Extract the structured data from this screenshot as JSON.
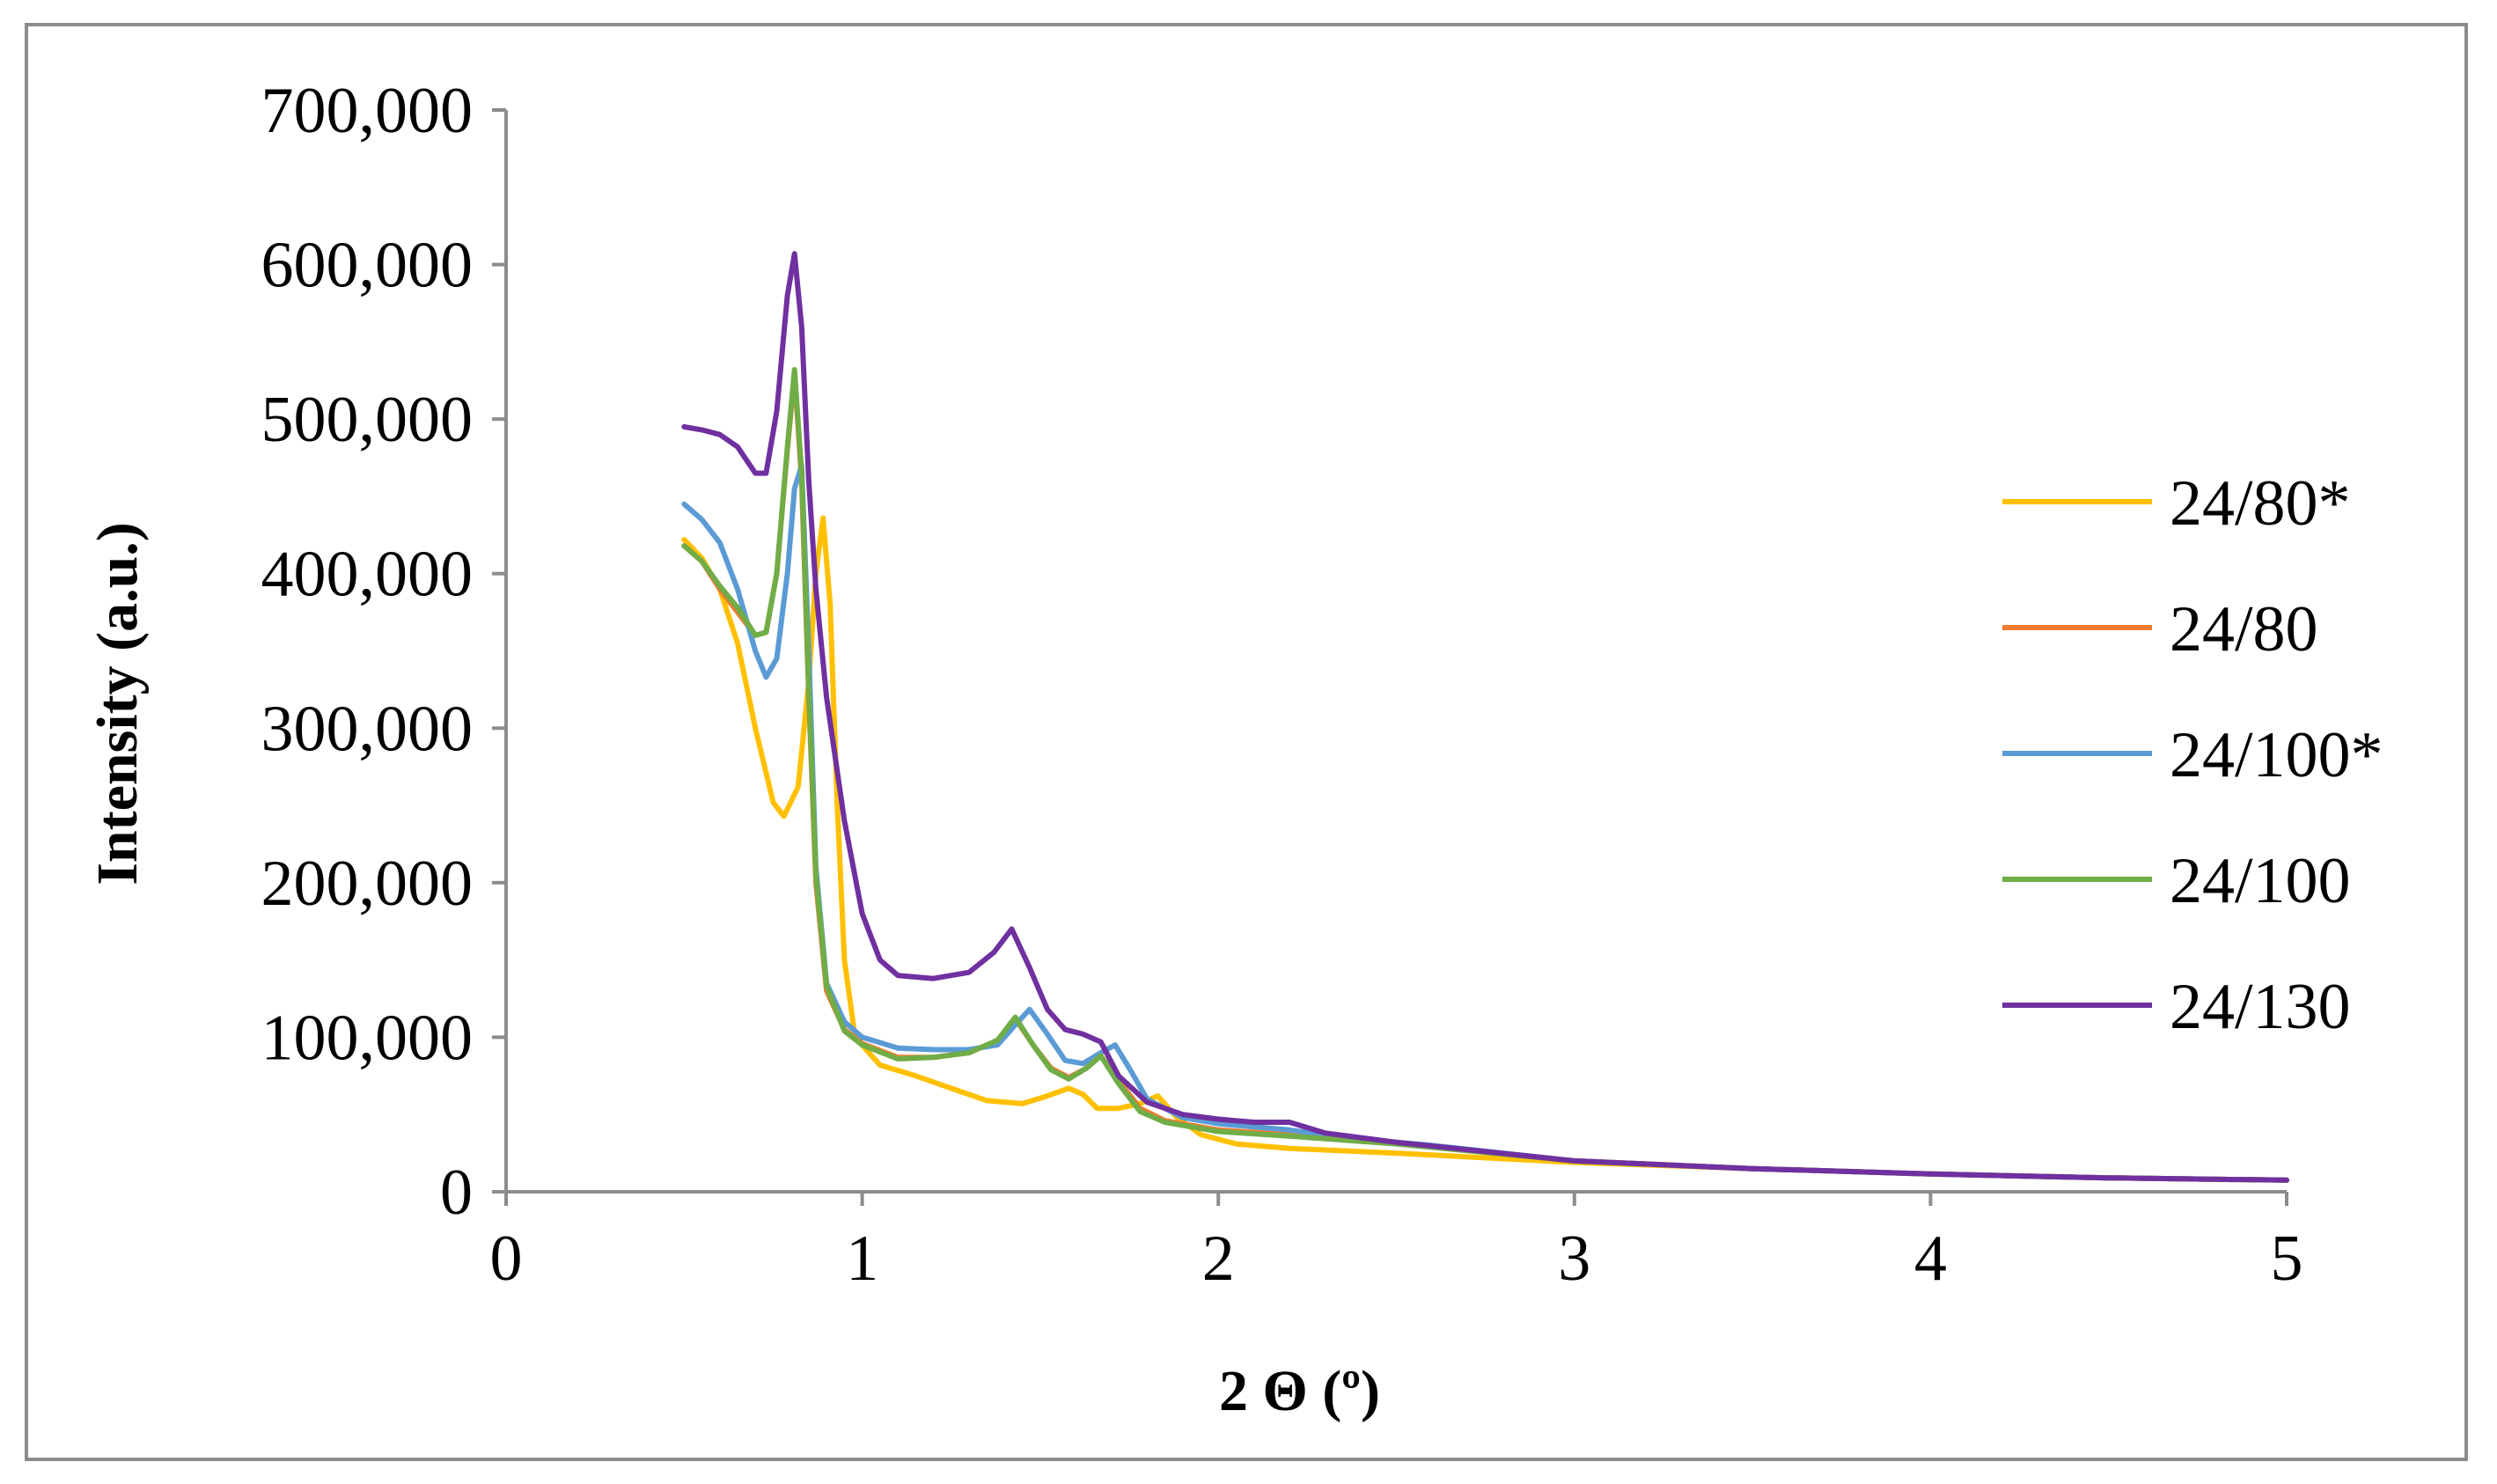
{
  "chart_data": {
    "type": "line",
    "xlabel": "2 Θ (º)",
    "ylabel": "Intensity (a.u.)",
    "xlim": [
      0,
      5
    ],
    "ylim": [
      0,
      700000
    ],
    "x_ticks": [
      "0",
      "1",
      "2",
      "3",
      "4",
      "5"
    ],
    "y_ticks": [
      "0",
      "100,000",
      "200,000",
      "300,000",
      "400,000",
      "500,000",
      "600,000",
      "700,000"
    ],
    "grid": false,
    "legend_position": "right",
    "series": [
      {
        "name": "24/80*",
        "color": "#FFC000",
        "points": [
          [
            0.5,
            422000
          ],
          [
            0.55,
            410000
          ],
          [
            0.6,
            390000
          ],
          [
            0.65,
            355000
          ],
          [
            0.7,
            300000
          ],
          [
            0.75,
            252000
          ],
          [
            0.78,
            243000
          ],
          [
            0.82,
            262000
          ],
          [
            0.85,
            330000
          ],
          [
            0.87,
            400000
          ],
          [
            0.89,
            436000
          ],
          [
            0.91,
            380000
          ],
          [
            0.93,
            250000
          ],
          [
            0.95,
            150000
          ],
          [
            0.98,
            100000
          ],
          [
            1.05,
            82000
          ],
          [
            1.15,
            75000
          ],
          [
            1.25,
            67000
          ],
          [
            1.35,
            59000
          ],
          [
            1.45,
            57000
          ],
          [
            1.52,
            62000
          ],
          [
            1.58,
            67000
          ],
          [
            1.62,
            63000
          ],
          [
            1.66,
            54000
          ],
          [
            1.72,
            54000
          ],
          [
            1.78,
            57000
          ],
          [
            1.83,
            62000
          ],
          [
            1.88,
            49000
          ],
          [
            1.95,
            37000
          ],
          [
            2.05,
            31000
          ],
          [
            2.2,
            28000
          ],
          [
            2.5,
            25000
          ],
          [
            3.0,
            19000
          ],
          [
            3.5,
            15000
          ],
          [
            4.0,
            11500
          ],
          [
            4.5,
            9000
          ],
          [
            5.0,
            7500
          ]
        ]
      },
      {
        "name": "24/80",
        "color": "#ED7D31",
        "points": [
          [
            0.5,
            418000
          ],
          [
            0.55,
            408000
          ],
          [
            0.6,
            390000
          ],
          [
            0.65,
            375000
          ],
          [
            0.7,
            360000
          ],
          [
            0.73,
            362000
          ],
          [
            0.76,
            400000
          ],
          [
            0.79,
            480000
          ],
          [
            0.81,
            530000
          ],
          [
            0.83,
            460000
          ],
          [
            0.85,
            320000
          ],
          [
            0.87,
            200000
          ],
          [
            0.9,
            130000
          ],
          [
            0.95,
            105000
          ],
          [
            1.0,
            96000
          ],
          [
            1.1,
            87000
          ],
          [
            1.2,
            87000
          ],
          [
            1.3,
            90000
          ],
          [
            1.38,
            98000
          ],
          [
            1.43,
            112000
          ],
          [
            1.48,
            95000
          ],
          [
            1.53,
            80000
          ],
          [
            1.58,
            74000
          ],
          [
            1.63,
            80000
          ],
          [
            1.67,
            88000
          ],
          [
            1.72,
            72000
          ],
          [
            1.78,
            54000
          ],
          [
            1.85,
            46000
          ],
          [
            2.0,
            40000
          ],
          [
            2.2,
            37000
          ],
          [
            2.5,
            32000
          ],
          [
            3.0,
            20000
          ],
          [
            3.5,
            15000
          ],
          [
            4.0,
            11500
          ],
          [
            4.5,
            9000
          ],
          [
            5.0,
            7500
          ]
        ]
      },
      {
        "name": "24/100*",
        "color": "#5B9BD5",
        "points": [
          [
            0.5,
            445000
          ],
          [
            0.55,
            435000
          ],
          [
            0.6,
            420000
          ],
          [
            0.65,
            390000
          ],
          [
            0.7,
            350000
          ],
          [
            0.73,
            333000
          ],
          [
            0.76,
            345000
          ],
          [
            0.79,
            400000
          ],
          [
            0.81,
            455000
          ],
          [
            0.83,
            470000
          ],
          [
            0.85,
            350000
          ],
          [
            0.87,
            210000
          ],
          [
            0.9,
            135000
          ],
          [
            0.95,
            110000
          ],
          [
            1.0,
            100000
          ],
          [
            1.1,
            93000
          ],
          [
            1.2,
            92000
          ],
          [
            1.3,
            92000
          ],
          [
            1.38,
            95000
          ],
          [
            1.43,
            108000
          ],
          [
            1.47,
            118000
          ],
          [
            1.52,
            102000
          ],
          [
            1.57,
            85000
          ],
          [
            1.62,
            83000
          ],
          [
            1.67,
            90000
          ],
          [
            1.71,
            95000
          ],
          [
            1.75,
            80000
          ],
          [
            1.8,
            60000
          ],
          [
            1.9,
            48000
          ],
          [
            2.0,
            44000
          ],
          [
            2.2,
            40000
          ],
          [
            2.4,
            34000
          ],
          [
            2.6,
            30000
          ],
          [
            3.0,
            20000
          ],
          [
            3.5,
            15000
          ],
          [
            4.0,
            11500
          ],
          [
            4.5,
            9000
          ],
          [
            5.0,
            7500
          ]
        ]
      },
      {
        "name": "24/100",
        "color": "#70AD47",
        "points": [
          [
            0.5,
            418000
          ],
          [
            0.55,
            408000
          ],
          [
            0.6,
            392000
          ],
          [
            0.65,
            378000
          ],
          [
            0.7,
            360000
          ],
          [
            0.73,
            362000
          ],
          [
            0.76,
            400000
          ],
          [
            0.79,
            482000
          ],
          [
            0.81,
            532000
          ],
          [
            0.83,
            465000
          ],
          [
            0.85,
            325000
          ],
          [
            0.87,
            205000
          ],
          [
            0.9,
            133000
          ],
          [
            0.95,
            104000
          ],
          [
            1.0,
            95000
          ],
          [
            1.1,
            86000
          ],
          [
            1.2,
            87000
          ],
          [
            1.3,
            90000
          ],
          [
            1.38,
            98000
          ],
          [
            1.43,
            113000
          ],
          [
            1.48,
            95000
          ],
          [
            1.53,
            79000
          ],
          [
            1.58,
            73000
          ],
          [
            1.63,
            80000
          ],
          [
            1.67,
            88000
          ],
          [
            1.72,
            70000
          ],
          [
            1.78,
            52000
          ],
          [
            1.85,
            45000
          ],
          [
            2.0,
            39000
          ],
          [
            2.2,
            36000
          ],
          [
            2.5,
            31000
          ],
          [
            3.0,
            20000
          ],
          [
            3.5,
            15000
          ],
          [
            4.0,
            11500
          ],
          [
            4.5,
            9000
          ],
          [
            5.0,
            7500
          ]
        ]
      },
      {
        "name": "24/130",
        "color": "#7030A0",
        "points": [
          [
            0.5,
            495000
          ],
          [
            0.55,
            493000
          ],
          [
            0.6,
            490000
          ],
          [
            0.65,
            482000
          ],
          [
            0.7,
            465000
          ],
          [
            0.73,
            465000
          ],
          [
            0.76,
            505000
          ],
          [
            0.79,
            580000
          ],
          [
            0.81,
            607000
          ],
          [
            0.83,
            560000
          ],
          [
            0.85,
            460000
          ],
          [
            0.87,
            390000
          ],
          [
            0.9,
            320000
          ],
          [
            0.95,
            240000
          ],
          [
            1.0,
            180000
          ],
          [
            1.05,
            150000
          ],
          [
            1.1,
            140000
          ],
          [
            1.2,
            138000
          ],
          [
            1.3,
            142000
          ],
          [
            1.37,
            155000
          ],
          [
            1.42,
            170000
          ],
          [
            1.47,
            145000
          ],
          [
            1.52,
            118000
          ],
          [
            1.57,
            105000
          ],
          [
            1.62,
            102000
          ],
          [
            1.67,
            97000
          ],
          [
            1.72,
            75000
          ],
          [
            1.8,
            58000
          ],
          [
            1.9,
            50000
          ],
          [
            2.0,
            47000
          ],
          [
            2.1,
            45000
          ],
          [
            2.2,
            45000
          ],
          [
            2.3,
            38000
          ],
          [
            2.5,
            32000
          ],
          [
            3.0,
            20000
          ],
          [
            3.5,
            15000
          ],
          [
            4.0,
            11500
          ],
          [
            4.5,
            9000
          ],
          [
            5.0,
            7500
          ]
        ]
      }
    ]
  }
}
